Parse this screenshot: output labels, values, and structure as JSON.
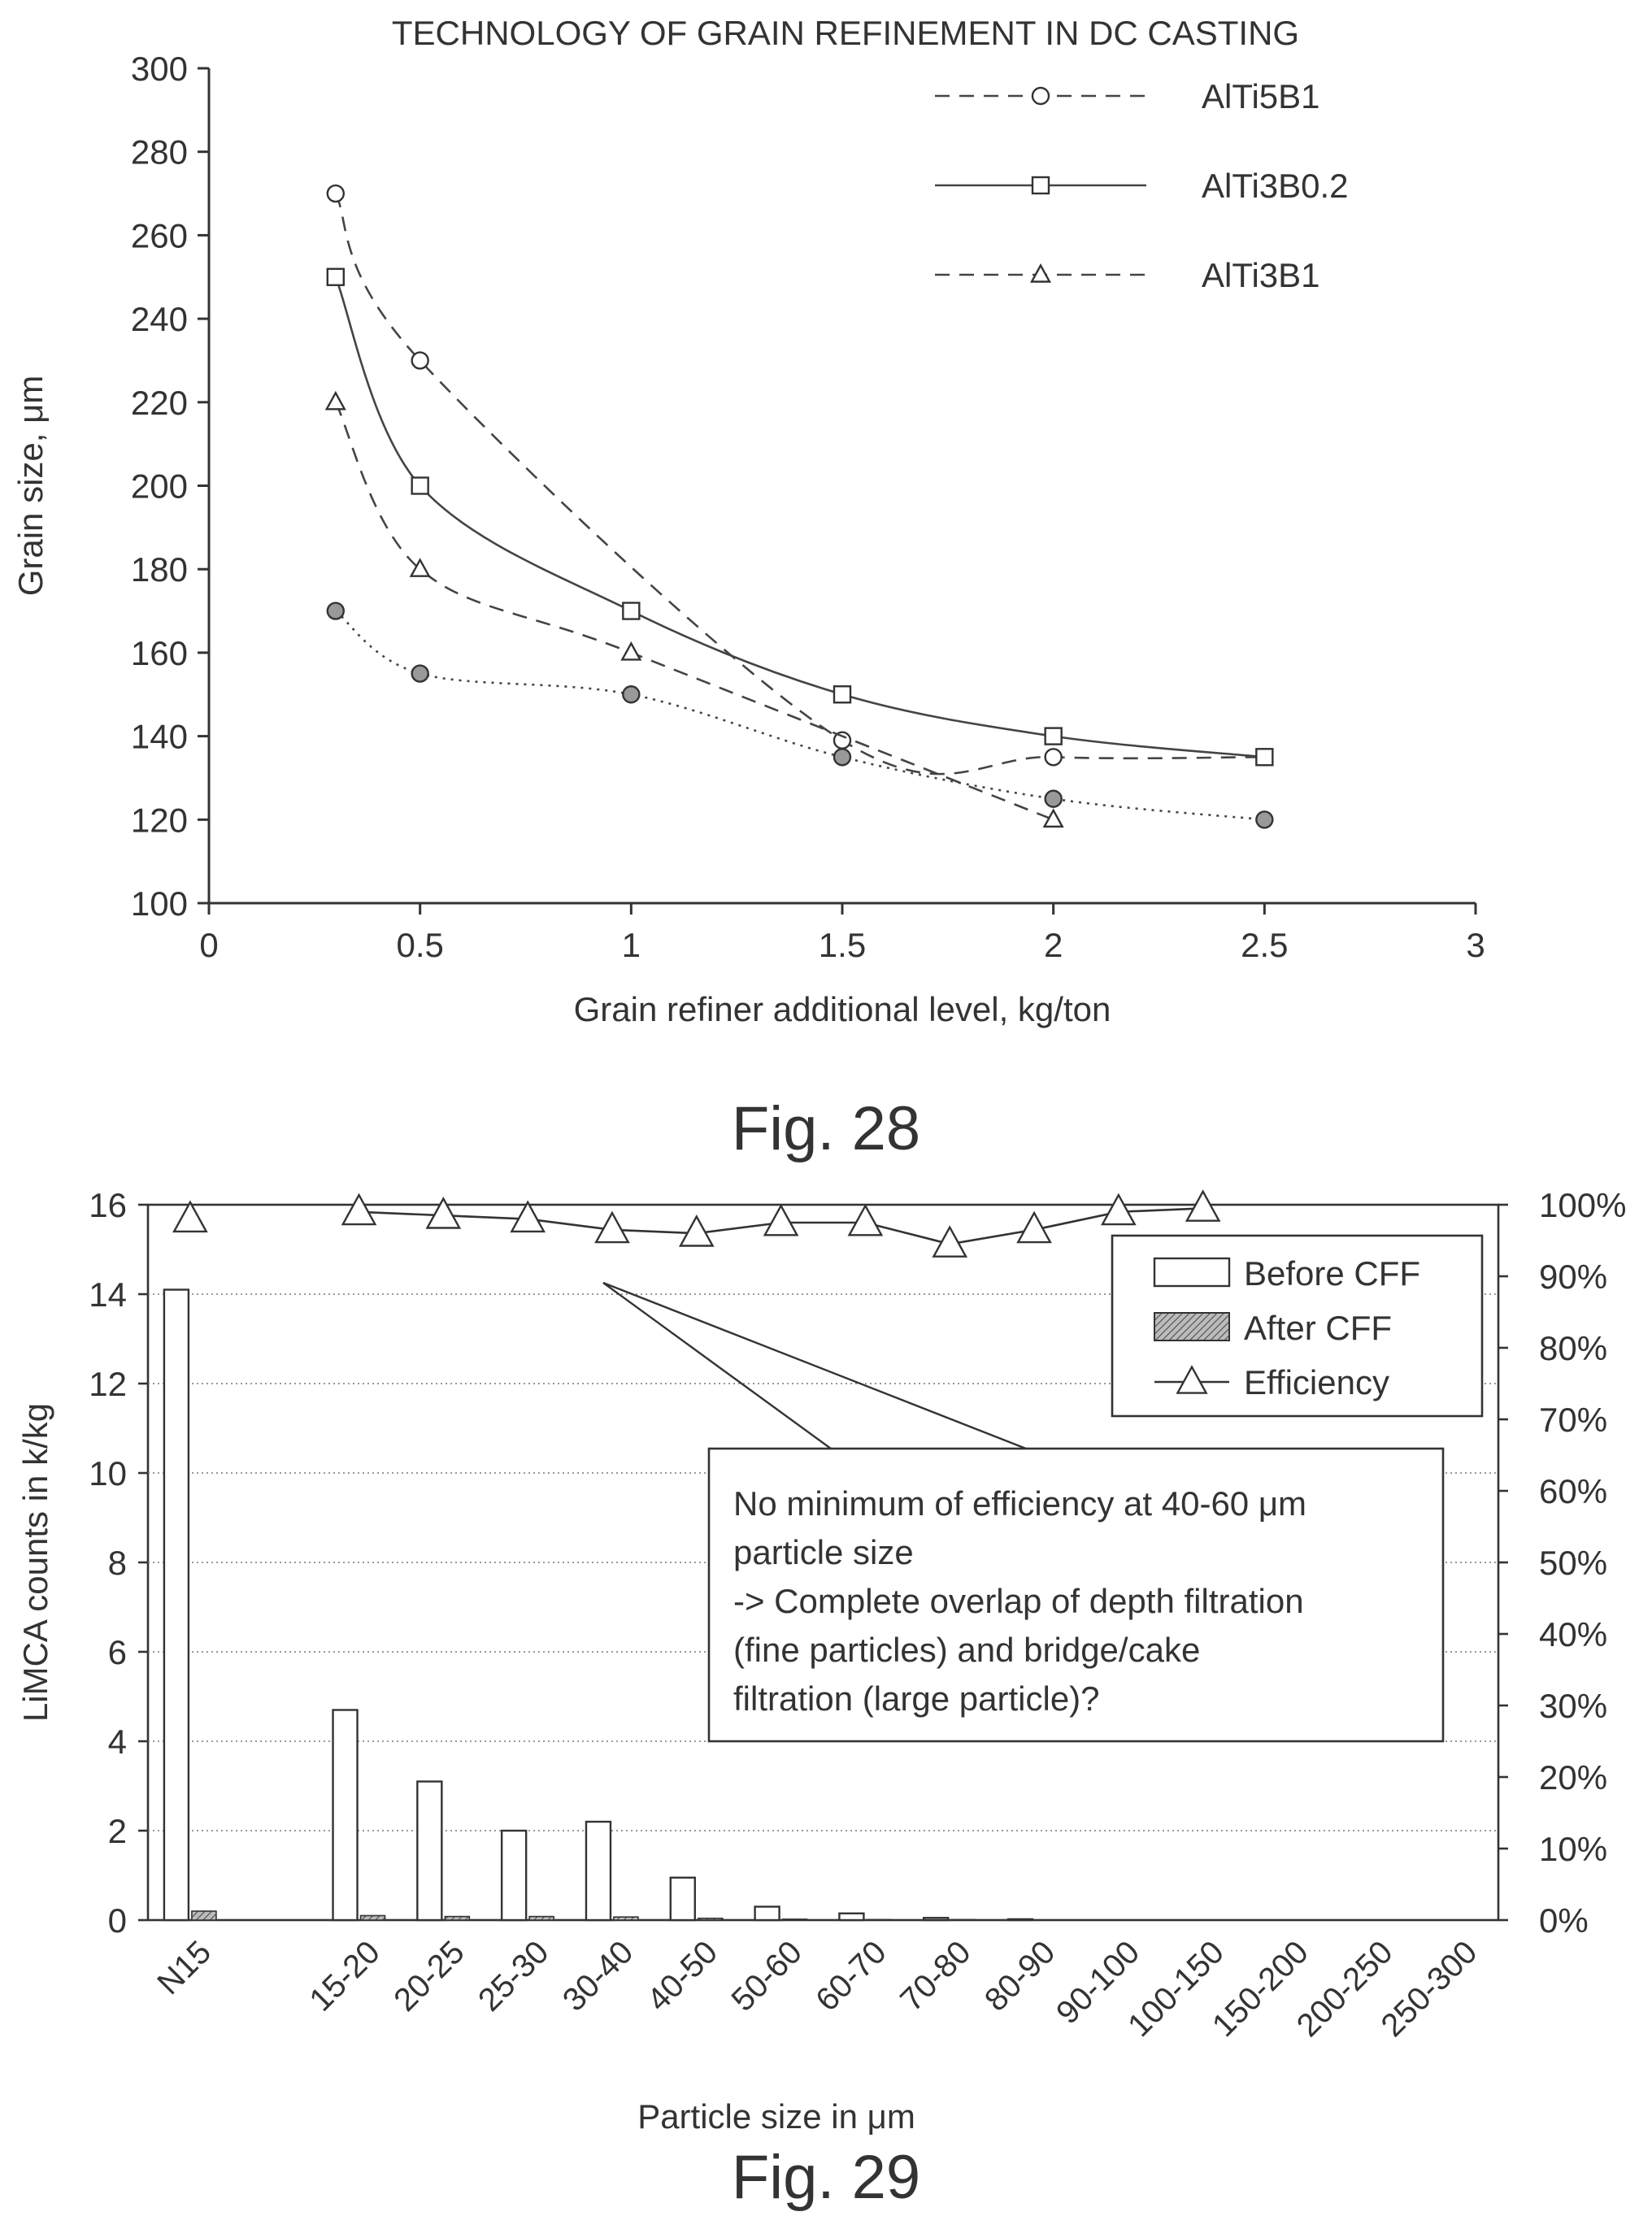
{
  "figures": [
    {
      "caption": "Fig. 28",
      "chart_data": {
        "type": "line",
        "title": "TECHNOLOGY OF GRAIN REFINEMENT IN DC CASTING",
        "xlabel": "Grain refiner additional level, kg/ton",
        "ylabel": "Grain size, μm",
        "xlim": [
          0,
          3
        ],
        "ylim": [
          100,
          300
        ],
        "xticks": [
          "0",
          "0.5",
          "1",
          "1.5",
          "2",
          "2.5",
          "3"
        ],
        "yticks": [
          "100",
          "120",
          "140",
          "160",
          "180",
          "200",
          "220",
          "240",
          "260",
          "280",
          "300"
        ],
        "legend_position": "top-right",
        "series": [
          {
            "name": "AlTi5B1",
            "marker": "circle",
            "line": "dashed",
            "x": [
              0.3,
              0.5,
              1.5,
              2,
              2.5
            ],
            "y": [
              270,
              230,
              139,
              135,
              135
            ]
          },
          {
            "name": "AlTi3B0.2",
            "marker": "square",
            "line": "solid",
            "x": [
              0.3,
              0.5,
              1,
              1.5,
              2,
              2.5
            ],
            "y": [
              250,
              200,
              170,
              150,
              140,
              135
            ]
          },
          {
            "name": "AlTi3B1",
            "marker": "triangle",
            "line": "dashed",
            "x": [
              0.3,
              0.5,
              1,
              2
            ],
            "y": [
              220,
              180,
              160,
              120
            ]
          },
          {
            "name": "",
            "marker": "filled-circle",
            "line": "dotted",
            "x": [
              0.3,
              0.5,
              1,
              1.5,
              2,
              2.5
            ],
            "y": [
              170,
              155,
              150,
              135,
              125,
              120
            ]
          }
        ]
      }
    },
    {
      "caption": "Fig. 29",
      "chart_data": {
        "type": "bar",
        "xlabel": "Particle size in μm",
        "ylabel": "LiMCA counts in k/kg",
        "ylim": [
          0,
          16
        ],
        "y2lim": [
          0,
          100
        ],
        "yticks": [
          "0",
          "2",
          "4",
          "6",
          "8",
          "10",
          "12",
          "14",
          "16"
        ],
        "y2ticks": [
          "0%",
          "10%",
          "20%",
          "30%",
          "40%",
          "50%",
          "60%",
          "70%",
          "80%",
          "90%",
          "100%"
        ],
        "categories": [
          "N15",
          "",
          "15-20",
          "20-25",
          "25-30",
          "30-40",
          "40-50",
          "50-60",
          "60-70",
          "70-80",
          "80-90",
          "90-100",
          "100-150",
          "150-200",
          "200-250",
          "250-300"
        ],
        "legend_position": "top-right",
        "series": [
          {
            "name": "Before CFF",
            "kind": "bar",
            "values": [
              14.1,
              null,
              4.7,
              3.1,
              2.0,
              2.2,
              0.95,
              0.3,
              0.15,
              0.05,
              0.02,
              0,
              0,
              0,
              0,
              0
            ]
          },
          {
            "name": "After CFF",
            "kind": "bar",
            "values": [
              0.2,
              null,
              0.1,
              0.08,
              0.08,
              0.07,
              0.04,
              0.02,
              0.01,
              0.01,
              0,
              0,
              0,
              0,
              0,
              0
            ]
          },
          {
            "name": "Efficiency",
            "kind": "line",
            "axis": "right",
            "unit": "%",
            "values": [
              98,
              null,
              99,
              98.5,
              98,
              96.5,
              96,
              97.5,
              97.5,
              94.5,
              96.5,
              99,
              99.5,
              null,
              null,
              null
            ]
          }
        ],
        "annotation": {
          "lines": [
            "No minimum of efficiency at 40-60 μm",
            "particle size",
            "-> Complete overlap of depth filtration",
            "(fine particles) and bridge/cake",
            "filtration (large particle)?"
          ]
        }
      }
    }
  ]
}
